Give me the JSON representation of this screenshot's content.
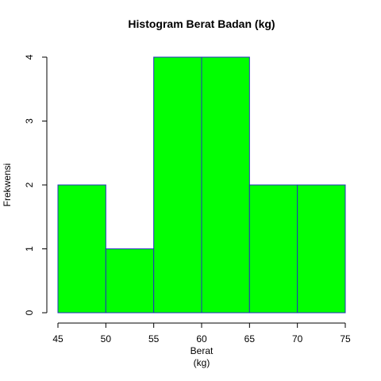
{
  "chart_data": {
    "type": "histogram",
    "title": "Histogram Berat Badan (kg)",
    "xlabel_line1": "Berat",
    "xlabel_line2": "(kg)",
    "ylabel": "Frekwensi",
    "bins": [
      {
        "from": 45,
        "to": 50,
        "count": 2
      },
      {
        "from": 50,
        "to": 55,
        "count": 1
      },
      {
        "from": 55,
        "to": 60,
        "count": 4
      },
      {
        "from": 60,
        "to": 65,
        "count": 4
      },
      {
        "from": 65,
        "to": 70,
        "count": 2
      },
      {
        "from": 70,
        "to": 75,
        "count": 2
      }
    ],
    "xlim": [
      45,
      75
    ],
    "ylim": [
      0,
      4
    ],
    "xticks": [
      "45",
      "50",
      "55",
      "60",
      "65",
      "70",
      "75"
    ],
    "yticks": [
      "0",
      "1",
      "2",
      "3",
      "4"
    ],
    "bar_fill": "#00ff00",
    "bar_stroke": "#2233bb",
    "grid": false
  }
}
